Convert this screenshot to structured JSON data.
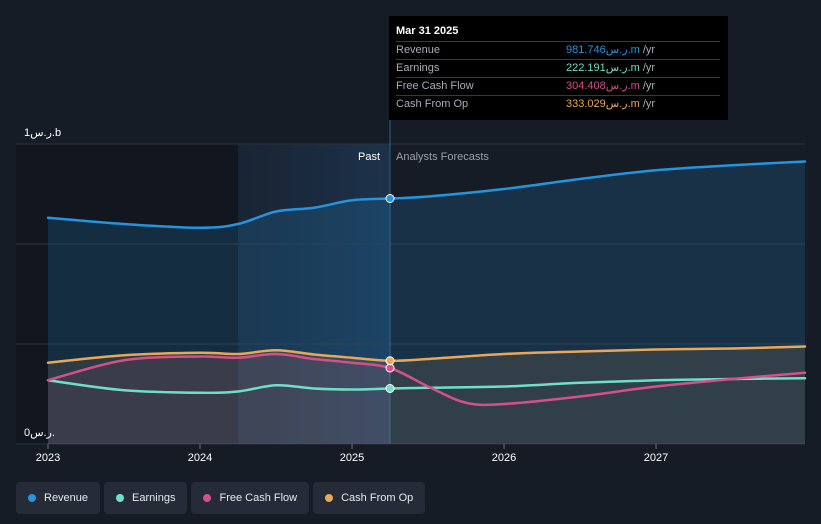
{
  "chart_data": {
    "type": "line",
    "y_top_label": "1ر.س.b",
    "y_bottom_label": "0ر.س.",
    "ylim": [
      0,
      1200
    ],
    "xlim": [
      2023.0,
      2027.98
    ],
    "x_ticks": [
      {
        "value": 2023.0,
        "label": "2023"
      },
      {
        "value": 2024.0,
        "label": "2024"
      },
      {
        "value": 2025.0,
        "label": "2025"
      },
      {
        "value": 2026.0,
        "label": "2026"
      },
      {
        "value": 2027.0,
        "label": "2027"
      }
    ],
    "split_x": 2025.25,
    "highlight_start_x": 2024.25,
    "past_label": "Past",
    "forecast_label": "Analysts Forecasts",
    "series": [
      {
        "name": "Revenue",
        "color": "#2394df",
        "points": [
          [
            2023.0,
            905
          ],
          [
            2023.5,
            880
          ],
          [
            2024.0,
            865
          ],
          [
            2024.25,
            880
          ],
          [
            2024.5,
            930
          ],
          [
            2024.75,
            945
          ],
          [
            2025.0,
            975
          ],
          [
            2025.25,
            982
          ],
          [
            2025.5,
            990
          ],
          [
            2026.0,
            1020
          ],
          [
            2026.5,
            1060
          ],
          [
            2027.0,
            1095
          ],
          [
            2027.5,
            1115
          ],
          [
            2027.98,
            1130
          ]
        ],
        "area": true
      },
      {
        "name": "Earnings",
        "color": "#6ee0c9",
        "points": [
          [
            2023.0,
            255
          ],
          [
            2023.5,
            215
          ],
          [
            2024.0,
            205
          ],
          [
            2024.25,
            210
          ],
          [
            2024.5,
            235
          ],
          [
            2024.75,
            222
          ],
          [
            2025.0,
            218
          ],
          [
            2025.25,
            222
          ],
          [
            2025.5,
            225
          ],
          [
            2026.0,
            230
          ],
          [
            2026.5,
            245
          ],
          [
            2027.0,
            255
          ],
          [
            2027.5,
            260
          ],
          [
            2027.98,
            263
          ]
        ],
        "area": false
      },
      {
        "name": "Free Cash Flow",
        "color": "#d64f8c",
        "points": [
          [
            2023.0,
            255
          ],
          [
            2023.5,
            335
          ],
          [
            2024.0,
            350
          ],
          [
            2024.25,
            345
          ],
          [
            2024.5,
            360
          ],
          [
            2024.75,
            340
          ],
          [
            2025.0,
            325
          ],
          [
            2025.25,
            304
          ],
          [
            2025.5,
            230
          ],
          [
            2025.75,
            165
          ],
          [
            2026.0,
            160
          ],
          [
            2026.5,
            190
          ],
          [
            2027.0,
            230
          ],
          [
            2027.5,
            260
          ],
          [
            2027.98,
            285
          ]
        ],
        "area": false
      },
      {
        "name": "Cash From Op",
        "color": "#e8a857",
        "points": [
          [
            2023.0,
            325
          ],
          [
            2023.5,
            355
          ],
          [
            2024.0,
            365
          ],
          [
            2024.25,
            360
          ],
          [
            2024.5,
            375
          ],
          [
            2024.75,
            358
          ],
          [
            2025.0,
            345
          ],
          [
            2025.25,
            333
          ],
          [
            2025.5,
            340
          ],
          [
            2026.0,
            360
          ],
          [
            2026.5,
            370
          ],
          [
            2027.0,
            378
          ],
          [
            2027.5,
            382
          ],
          [
            2027.98,
            390
          ]
        ],
        "area": true
      }
    ]
  },
  "tooltip": {
    "date": "Mar 31 2025",
    "rows": [
      {
        "label": "Revenue",
        "value": "981.746ر.س.m",
        "unit": " /yr",
        "color": "#2394df"
      },
      {
        "label": "Earnings",
        "value": "222.191ر.س.m",
        "unit": " /yr",
        "color": "#6ee0c9"
      },
      {
        "label": "Free Cash Flow",
        "value": "304.408ر.س.m",
        "unit": " /yr",
        "color": "#d64f8c"
      },
      {
        "label": "Cash From Op",
        "value": "333.029ر.س.m",
        "unit": " /yr",
        "color": "#e8a857"
      }
    ]
  },
  "legend": [
    {
      "label": "Revenue",
      "color": "#2394df"
    },
    {
      "label": "Earnings",
      "color": "#6ee0c9"
    },
    {
      "label": "Free Cash Flow",
      "color": "#d64f8c"
    },
    {
      "label": "Cash From Op",
      "color": "#e8a857"
    }
  ]
}
